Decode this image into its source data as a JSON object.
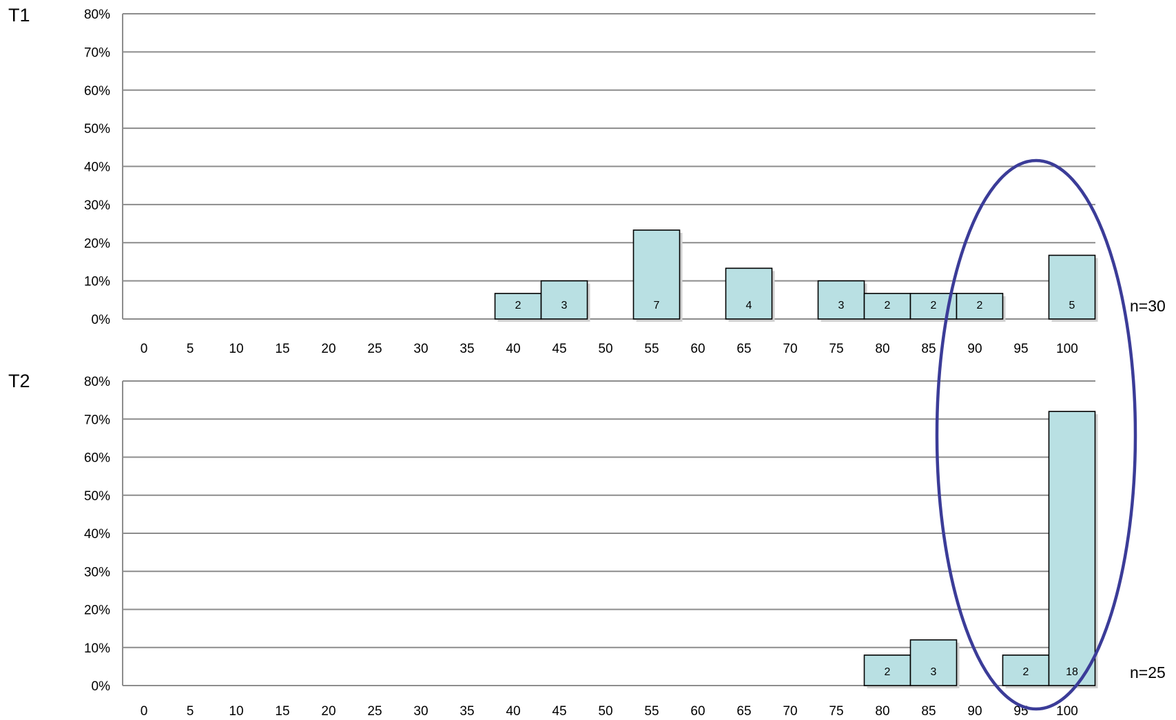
{
  "chart_data": [
    {
      "type": "bar",
      "panel_label": "T1",
      "n_label": "n=30",
      "categories": [
        "0",
        "5",
        "10",
        "15",
        "20",
        "25",
        "30",
        "35",
        "40",
        "45",
        "50",
        "55",
        "60",
        "65",
        "70",
        "75",
        "80",
        "85",
        "90",
        "95",
        "100"
      ],
      "values": [
        0,
        0,
        0,
        0,
        0,
        0,
        0,
        0,
        6.7,
        10,
        0,
        23.3,
        0,
        13.3,
        0,
        10,
        6.7,
        6.7,
        6.7,
        0,
        16.7
      ],
      "counts": [
        null,
        null,
        null,
        null,
        null,
        null,
        null,
        null,
        "2",
        "3",
        null,
        "7",
        null,
        "4",
        null,
        "3",
        "2",
        "2",
        "2",
        null,
        "5"
      ],
      "y_unit": "percent",
      "ylim": [
        0,
        80
      ],
      "y_ticks": [
        "0%",
        "10%",
        "20%",
        "30%",
        "40%",
        "50%",
        "60%",
        "70%",
        "80%"
      ],
      "grid": true,
      "bar_color": "#b9e0e3"
    },
    {
      "type": "bar",
      "panel_label": "T2",
      "n_label": "n=25",
      "categories": [
        "0",
        "5",
        "10",
        "15",
        "20",
        "25",
        "30",
        "35",
        "40",
        "45",
        "50",
        "55",
        "60",
        "65",
        "70",
        "75",
        "80",
        "85",
        "90",
        "95",
        "100"
      ],
      "values": [
        0,
        0,
        0,
        0,
        0,
        0,
        0,
        0,
        0,
        0,
        0,
        0,
        0,
        0,
        0,
        0,
        8,
        12,
        0,
        8,
        72
      ],
      "counts": [
        null,
        null,
        null,
        null,
        null,
        null,
        null,
        null,
        null,
        null,
        null,
        null,
        null,
        null,
        null,
        null,
        "2",
        "3",
        null,
        "2",
        "18"
      ],
      "y_unit": "percent",
      "ylim": [
        0,
        80
      ],
      "y_ticks": [
        "0%",
        "10%",
        "20%",
        "30%",
        "40%",
        "50%",
        "60%",
        "70%",
        "80%"
      ],
      "grid": true,
      "bar_color": "#b9e0e3"
    }
  ],
  "annotation": {
    "shape": "ellipse",
    "color": "#3b3c98",
    "highlights": "categories 90-100 across both panels"
  }
}
